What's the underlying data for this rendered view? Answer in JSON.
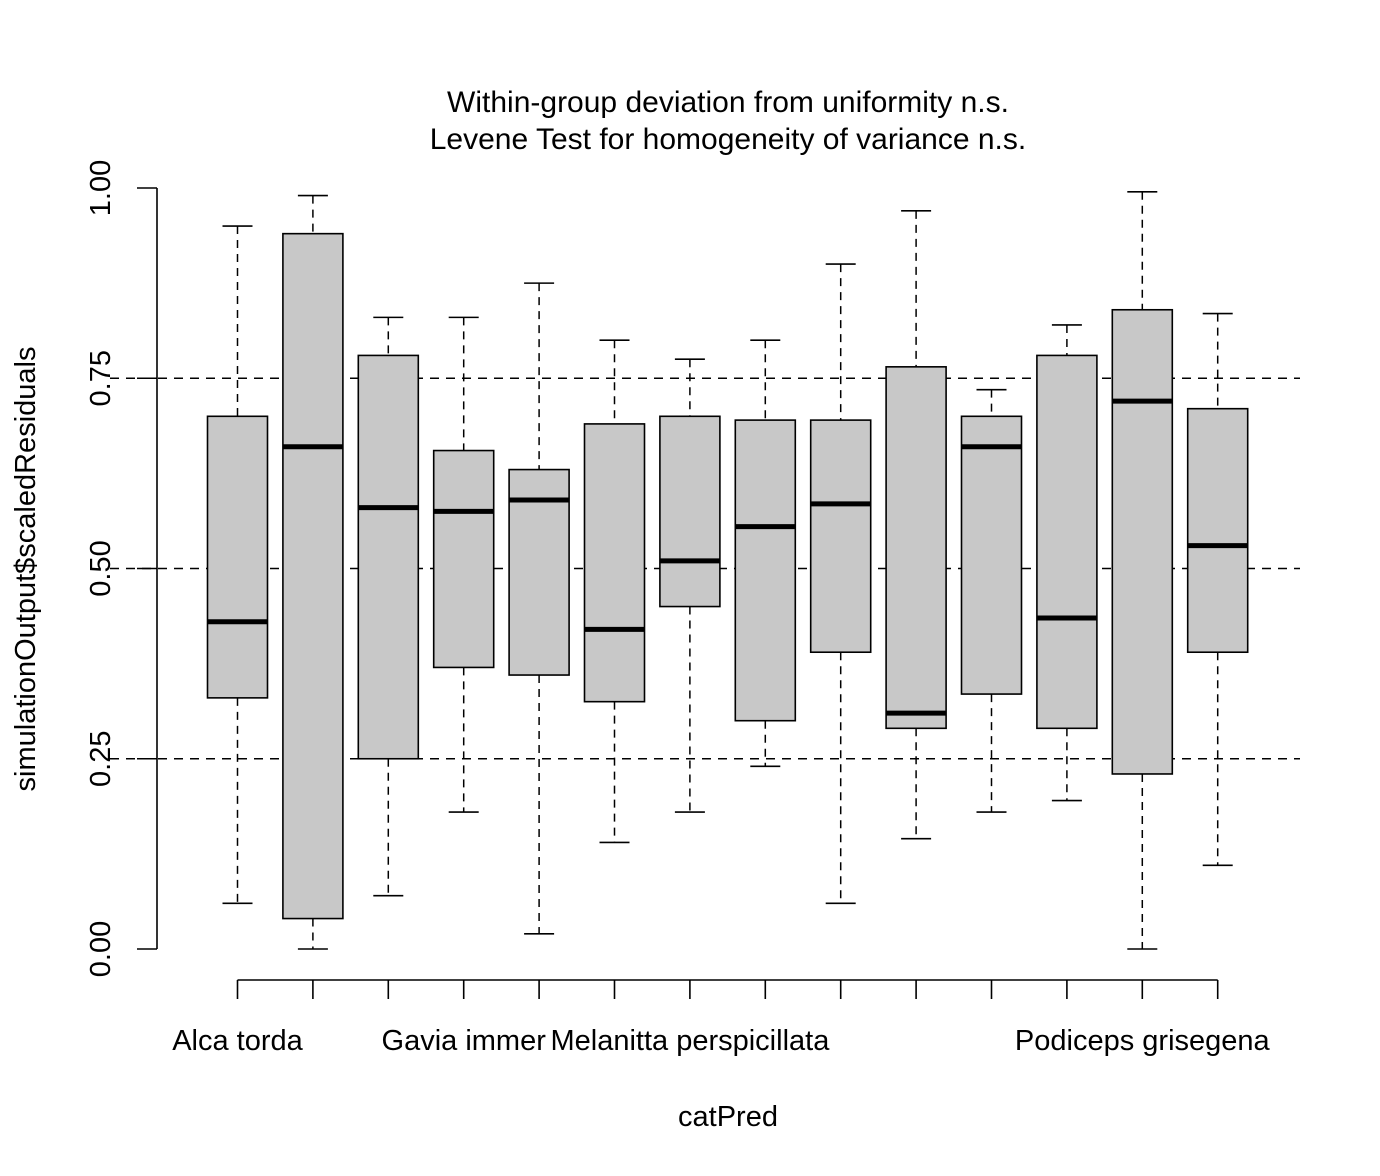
{
  "chart_data": {
    "type": "boxplot",
    "title": "Within-group deviation from uniformity n.s.",
    "subtitle": "Levene Test for homogeneity of variance n.s.",
    "xlabel": "catPred",
    "ylabel": "simulationOutput$scaledResiduals",
    "ylim": [
      0,
      1
    ],
    "yticks": [
      "0.00",
      "0.25",
      "0.50",
      "0.75",
      "1.00"
    ],
    "reference_lines": [
      0.25,
      0.5,
      0.75
    ],
    "box_fill": "#c8c8c8",
    "x_tick_labels_shown": [
      {
        "index": 0,
        "label": "Alca torda"
      },
      {
        "index": 3,
        "label": "Gavia immer"
      },
      {
        "index": 6,
        "label": "Melanitta perspicillata"
      },
      {
        "index": 12,
        "label": "Podiceps grisegena"
      }
    ],
    "boxes": [
      {
        "min": 0.06,
        "q1": 0.33,
        "median": 0.43,
        "q3": 0.7,
        "max": 0.95
      },
      {
        "min": 0.0,
        "q1": 0.04,
        "median": 0.66,
        "q3": 0.94,
        "max": 0.99
      },
      {
        "min": 0.07,
        "q1": 0.25,
        "median": 0.58,
        "q3": 0.78,
        "max": 0.83
      },
      {
        "min": 0.18,
        "q1": 0.37,
        "median": 0.575,
        "q3": 0.655,
        "max": 0.83
      },
      {
        "min": 0.02,
        "q1": 0.36,
        "median": 0.59,
        "q3": 0.63,
        "max": 0.875
      },
      {
        "min": 0.14,
        "q1": 0.325,
        "median": 0.42,
        "q3": 0.69,
        "max": 0.8
      },
      {
        "min": 0.18,
        "q1": 0.45,
        "median": 0.51,
        "q3": 0.7,
        "max": 0.775
      },
      {
        "min": 0.24,
        "q1": 0.3,
        "median": 0.555,
        "q3": 0.695,
        "max": 0.8
      },
      {
        "min": 0.06,
        "q1": 0.39,
        "median": 0.585,
        "q3": 0.695,
        "max": 0.9
      },
      {
        "min": 0.145,
        "q1": 0.29,
        "median": 0.31,
        "q3": 0.765,
        "max": 0.97
      },
      {
        "min": 0.18,
        "q1": 0.335,
        "median": 0.66,
        "q3": 0.7,
        "max": 0.735
      },
      {
        "min": 0.195,
        "q1": 0.29,
        "median": 0.435,
        "q3": 0.78,
        "max": 0.82
      },
      {
        "min": 0.0,
        "q1": 0.23,
        "median": 0.72,
        "q3": 0.84,
        "max": 0.995
      },
      {
        "min": 0.11,
        "q1": 0.39,
        "median": 0.53,
        "q3": 0.71,
        "max": 0.835
      }
    ]
  }
}
